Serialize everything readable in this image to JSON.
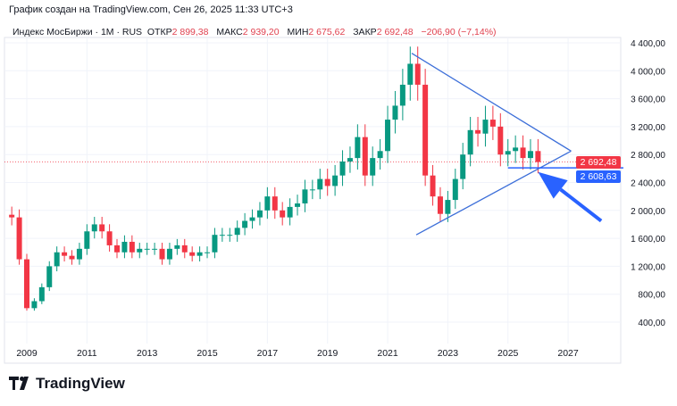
{
  "caption": "График создан на TradingView.com, Сен 26, 2025 11:33 UTC+3",
  "legend": {
    "symbol": "Индекс МосБиржи · 1M · RUS",
    "open_label": "ОТКР",
    "open": "2 899,38",
    "high_label": "МАКС",
    "high": "2 939,20",
    "low_label": "МИН",
    "low": "2 675,62",
    "close_label": "ЗАКР",
    "close": "2 692,48",
    "change": "−206,90 (−7,14%)"
  },
  "price_tags": {
    "last": "2 692,48",
    "line": "2 608,63"
  },
  "colors": {
    "up": "#089981",
    "down": "#f23645",
    "drawing": "#2962ff",
    "trendline": "#3d6fd9"
  },
  "logo": "TradingView",
  "chart_data": {
    "type": "candlestick",
    "interval": "1M (shown here aggregated by quarter, approximate)",
    "ylim": [
      200,
      4600
    ],
    "xlim": [
      2008.4,
      2028.7
    ],
    "y_ticks": [
      "400,00",
      "800,00",
      "1 200,00",
      "1 600,00",
      "2 000,00",
      "2 400,00",
      "2 800,00",
      "3 200,00",
      "3 600,00",
      "4 000,00",
      "4 400,00"
    ],
    "y_tick_values": [
      400,
      800,
      1200,
      1600,
      2000,
      2400,
      2800,
      3200,
      3600,
      4000,
      4400
    ],
    "x_ticks": [
      "2009",
      "2011",
      "2013",
      "2015",
      "2017",
      "2019",
      "2021",
      "2023",
      "2025",
      "2027"
    ],
    "start": 2008.5,
    "closes": [
      1900,
      1300,
      600,
      700,
      900,
      1200,
      1400,
      1350,
      1300,
      1450,
      1700,
      1800,
      1700,
      1500,
      1400,
      1550,
      1400,
      1450,
      1450,
      1450,
      1300,
      1450,
      1500,
      1400,
      1350,
      1400,
      1400,
      1650,
      1650,
      1650,
      1750,
      1850,
      1900,
      2000,
      2200,
      2000,
      1900,
      2050,
      2100,
      2300,
      2300,
      2450,
      2350,
      2500,
      2700,
      2750,
      3050,
      2500,
      2750,
      2850,
      3300,
      3500,
      3800,
      4100,
      3800,
      2500,
      2200,
      1950,
      2150,
      2450,
      2800,
      3150,
      3100,
      3300,
      3200,
      2800,
      2850,
      2900,
      2750,
      2850,
      2692.48
    ],
    "drawings": [
      {
        "type": "trendline",
        "from": [
          2021.8,
          4250
        ],
        "to": [
          2027.1,
          2850
        ]
      },
      {
        "type": "trendline",
        "from": [
          2021.95,
          1650
        ],
        "to": [
          2027.1,
          2850
        ]
      },
      {
        "type": "horizontal",
        "value": 2608.63,
        "from": 2025.0
      },
      {
        "type": "arrow",
        "from": [
          2028.1,
          1850
        ],
        "to": [
          2026.0,
          2550
        ]
      }
    ]
  }
}
